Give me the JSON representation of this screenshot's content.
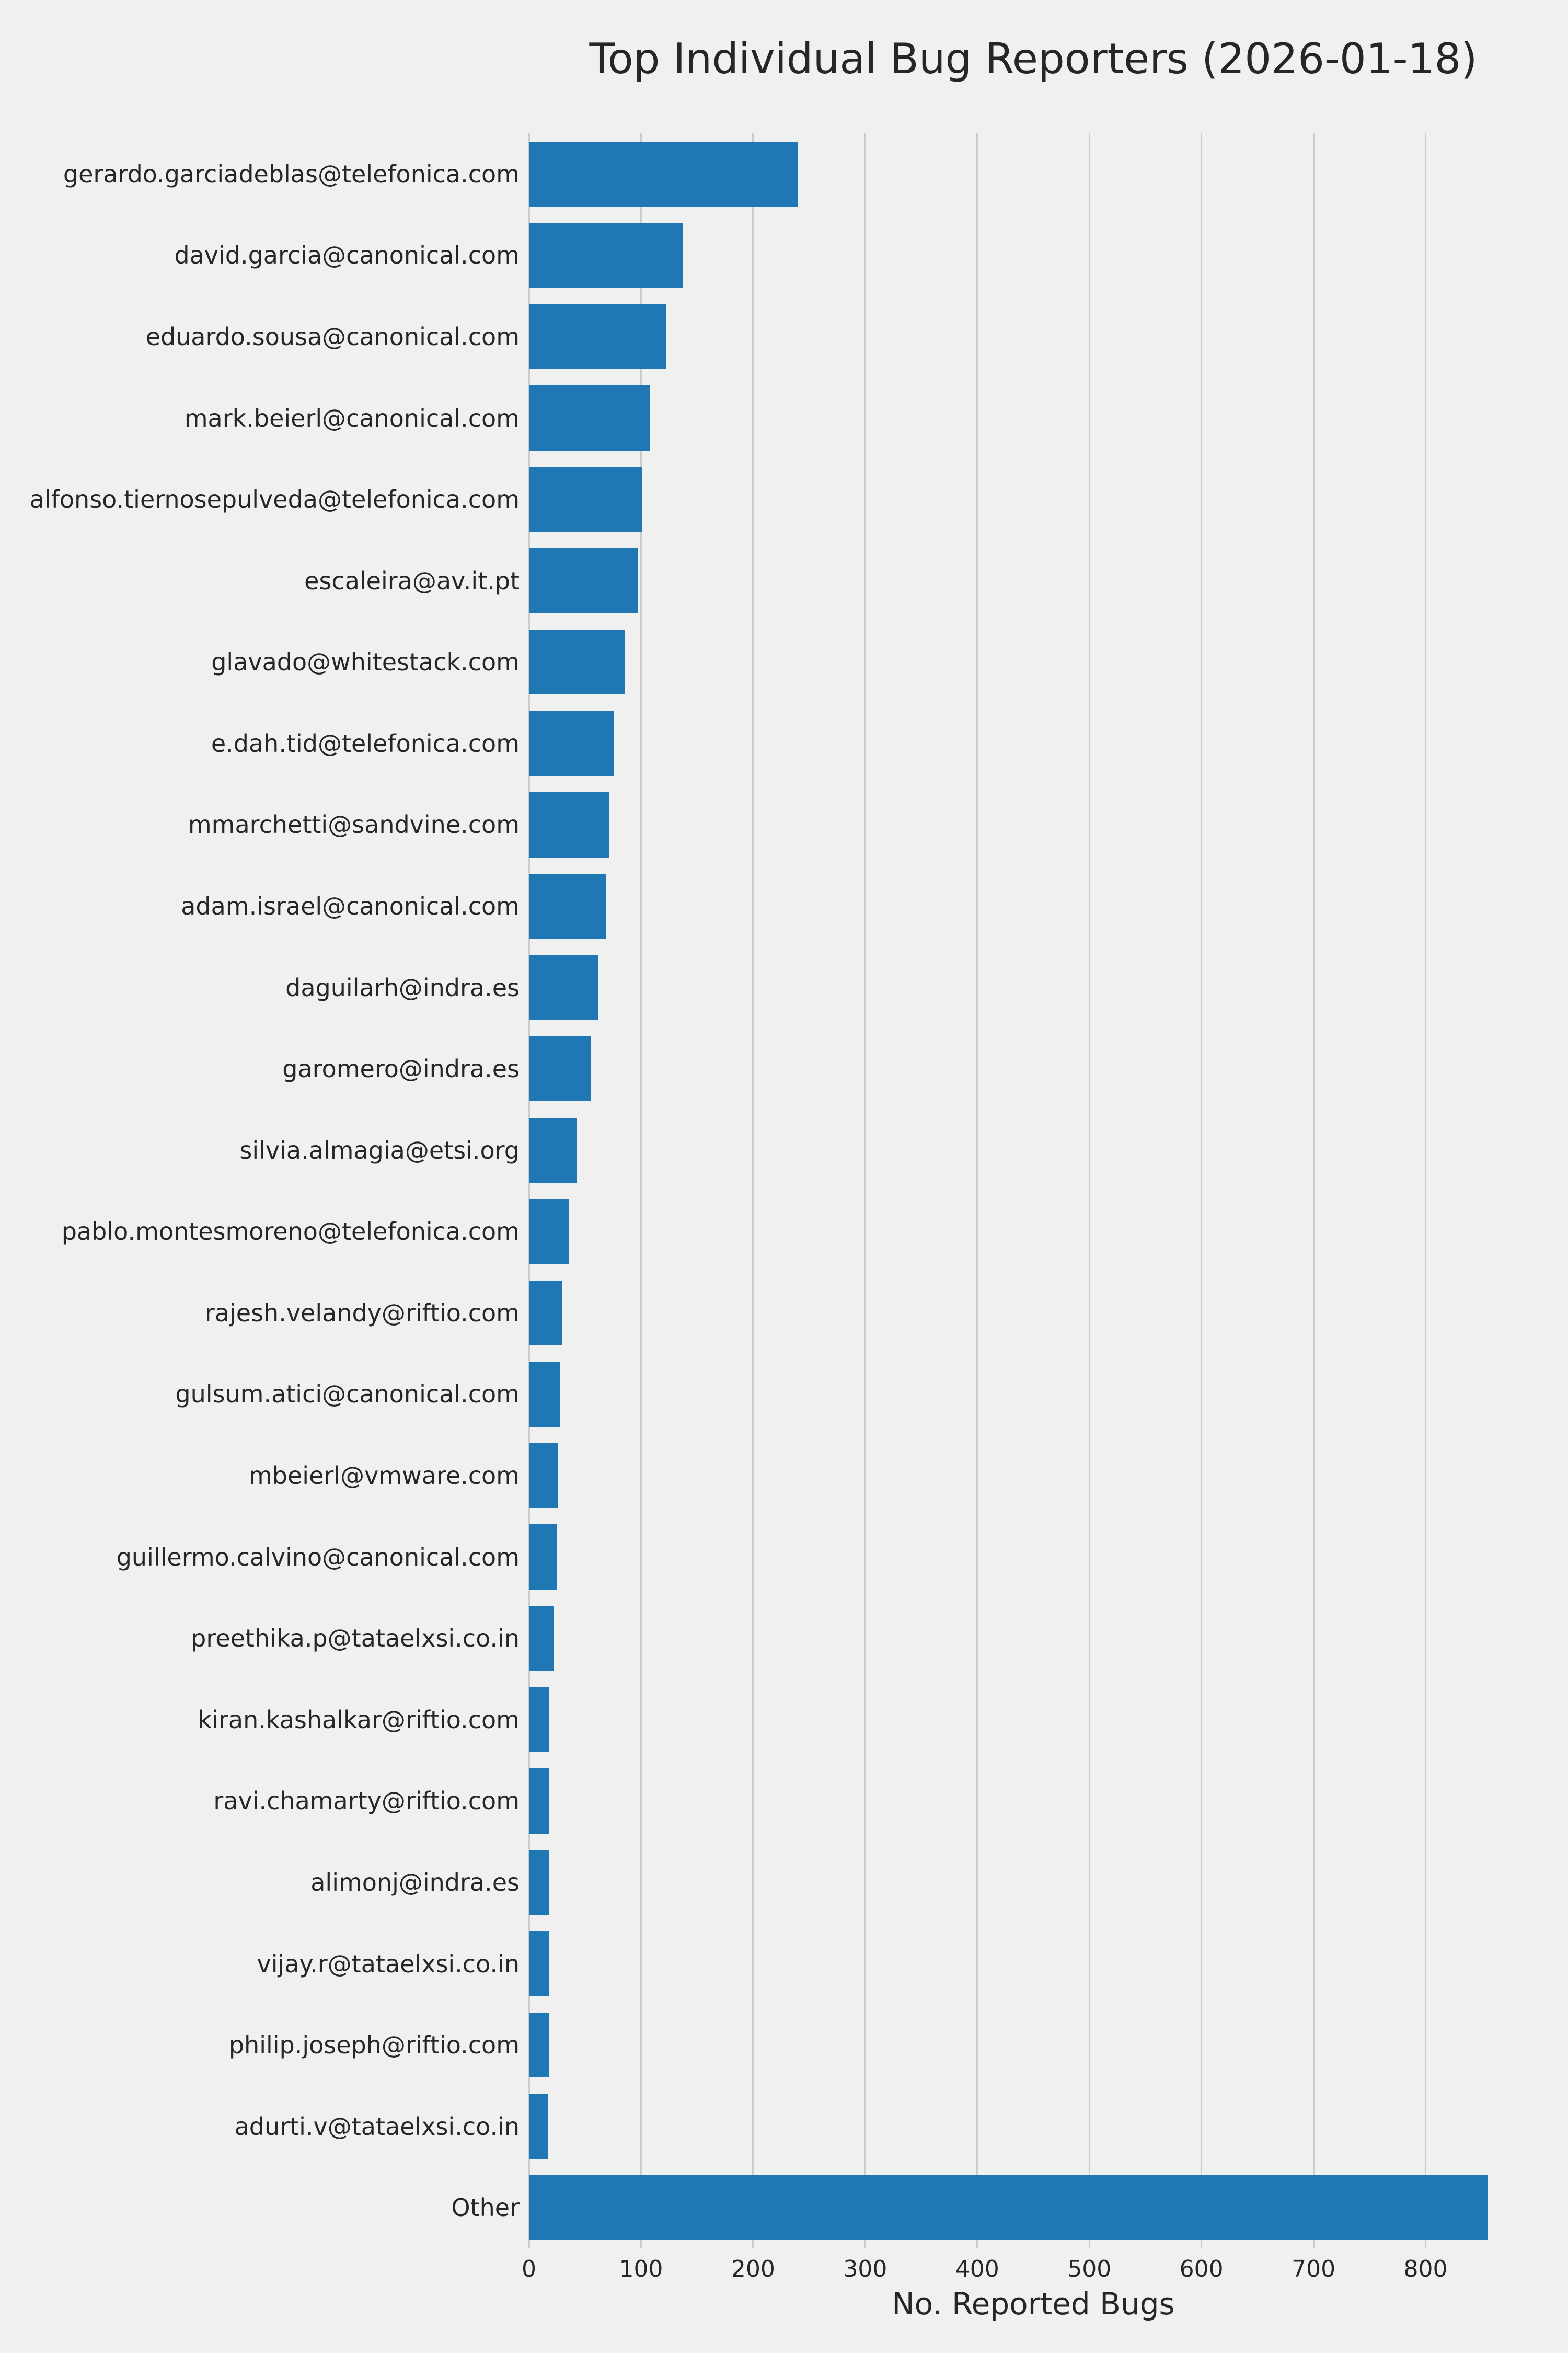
{
  "chart_data": {
    "type": "bar",
    "orientation": "horizontal",
    "title": "Top Individual Bug Reporters (2026-01-18)",
    "xlabel": "No. Reported Bugs",
    "ylabel": "",
    "xlim": [
      0,
      900
    ],
    "xticks": [
      0,
      100,
      200,
      300,
      400,
      500,
      600,
      700,
      800
    ],
    "grid": true,
    "bar_color": "#1f77b4",
    "background_color": "#f0f0f0",
    "gridline_color": "#cccccc",
    "categories": [
      "gerardo.garciadeblas@telefonica.com",
      "david.garcia@canonical.com",
      "eduardo.sousa@canonical.com",
      "mark.beierl@canonical.com",
      "alfonso.tiernosepulveda@telefonica.com",
      "escaleira@av.it.pt",
      "glavado@whitestack.com",
      "e.dah.tid@telefonica.com",
      "mmarchetti@sandvine.com",
      "adam.israel@canonical.com",
      "daguilarh@indra.es",
      "garomero@indra.es",
      "silvia.almagia@etsi.org",
      "pablo.montesmoreno@telefonica.com",
      "rajesh.velandy@riftio.com",
      "gulsum.atici@canonical.com",
      "mbeierl@vmware.com",
      "guillermo.calvino@canonical.com",
      "preethika.p@tataelxsi.co.in",
      "kiran.kashalkar@riftio.com",
      "ravi.chamarty@riftio.com",
      "alimonj@indra.es",
      "vijay.r@tataelxsi.co.in",
      "philip.joseph@riftio.com",
      "adurti.v@tataelxsi.co.in",
      "Other"
    ],
    "values": [
      240,
      137,
      122,
      108,
      101,
      97,
      86,
      76,
      72,
      69,
      62,
      55,
      43,
      36,
      30,
      28,
      26,
      25,
      22,
      18,
      18,
      18,
      18,
      18,
      17,
      855
    ]
  }
}
